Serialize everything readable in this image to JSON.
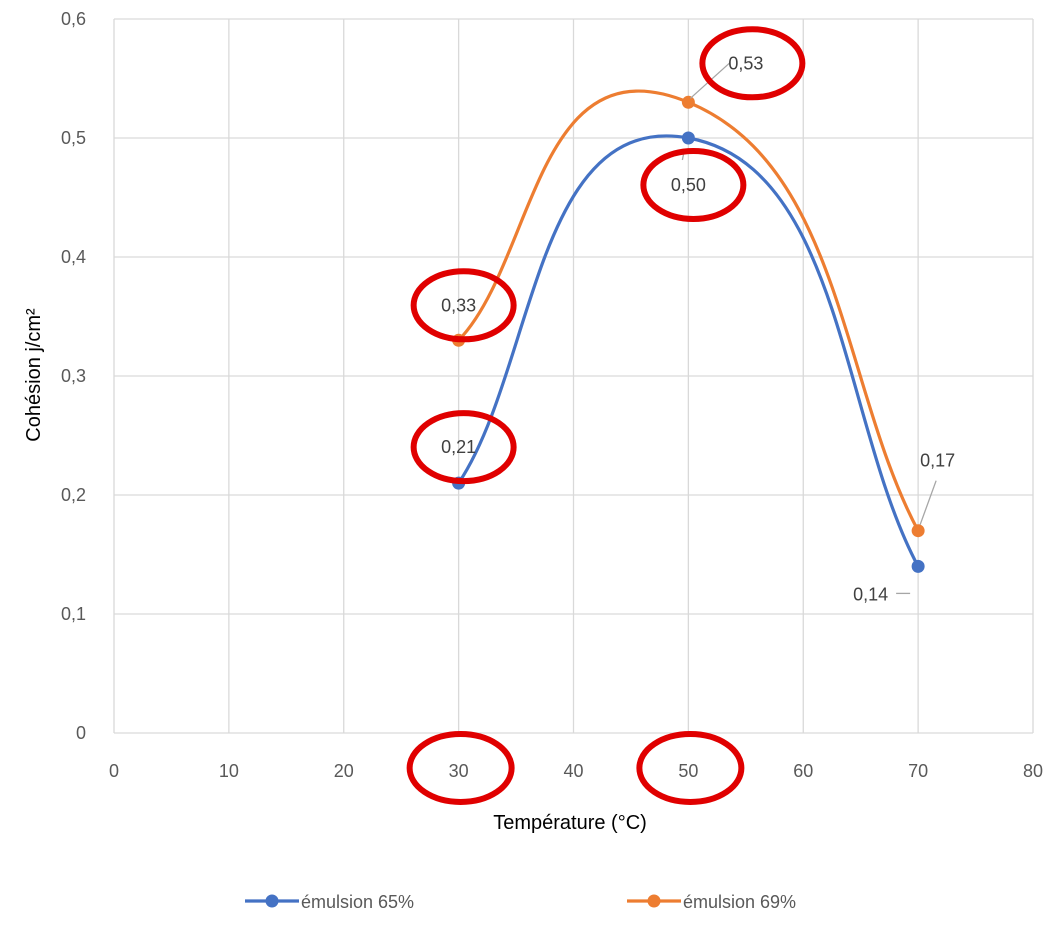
{
  "chart_data": {
    "type": "line",
    "title": "",
    "xlabel": "Température (°C)",
    "ylabel": "Cohésion j/cm²",
    "xlim": [
      0,
      80
    ],
    "ylim": [
      0,
      0.6
    ],
    "x_ticks": [
      0,
      10,
      20,
      30,
      40,
      50,
      60,
      70,
      80
    ],
    "x_tick_labels": [
      "0",
      "10",
      "20",
      "30",
      "40",
      "50",
      "60",
      "70",
      "80"
    ],
    "y_ticks": [
      0,
      0.1,
      0.2,
      0.3,
      0.4,
      0.5,
      0.6
    ],
    "y_tick_labels": [
      "0",
      "0,1",
      "0,2",
      "0,3",
      "0,4",
      "0,5",
      "0,6"
    ],
    "grid": true,
    "smooth": true,
    "legend_position": "bottom",
    "series": [
      {
        "name": "émulsion 65%",
        "color": "#4472C4",
        "x": [
          30,
          50,
          70
        ],
        "values": [
          0.21,
          0.5,
          0.14
        ],
        "labels": [
          "0,21",
          "0,50",
          "0,14"
        ]
      },
      {
        "name": "émulsion 69%",
        "color": "#ED7D31",
        "x": [
          30,
          50,
          70
        ],
        "values": [
          0.33,
          0.53,
          0.17
        ],
        "labels": [
          "0,33",
          "0,53",
          "0,17"
        ]
      }
    ],
    "highlight_color": "#E00000",
    "highlights": [
      {
        "type": "x-tick",
        "target": 30
      },
      {
        "type": "x-tick",
        "target": 50
      },
      {
        "type": "data-label",
        "series": 0,
        "point": 0
      },
      {
        "type": "data-label",
        "series": 0,
        "point": 1
      },
      {
        "type": "data-label",
        "series": 1,
        "point": 0
      },
      {
        "type": "data-label",
        "series": 1,
        "point": 1
      }
    ]
  }
}
